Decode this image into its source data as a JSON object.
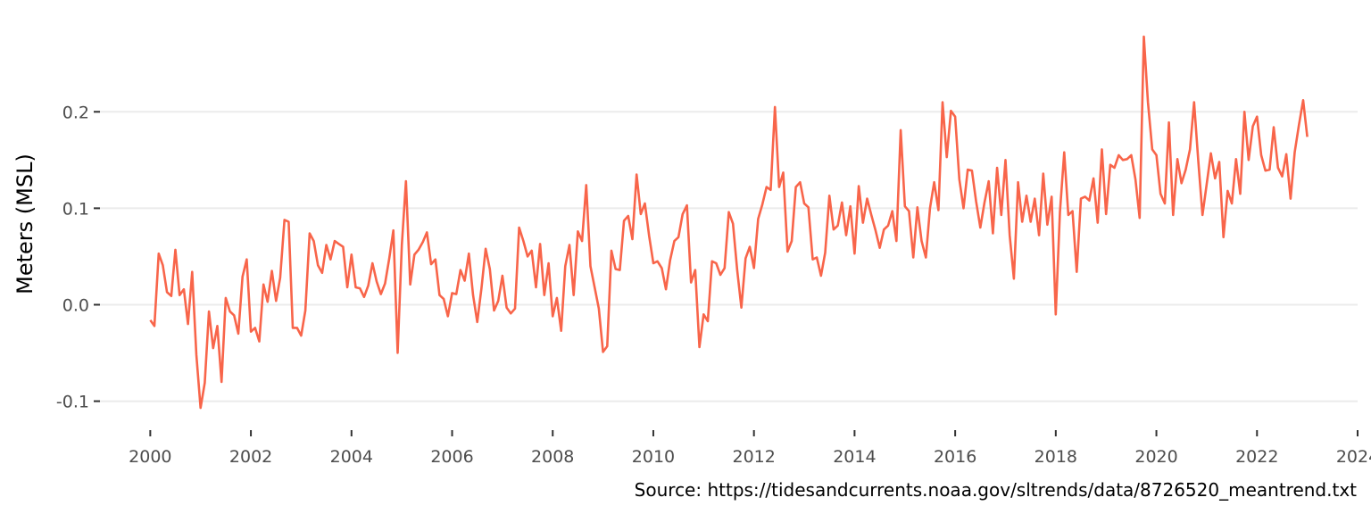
{
  "chart_data": {
    "type": "line",
    "title": "",
    "xlabel": "",
    "ylabel": "Meters (MSL)",
    "caption": "Source: https://tidesandcurrents.noaa.gov/sltrends/data/8726520_meantrend.txt",
    "xlim": [
      1999,
      2024
    ],
    "ylim": [
      -0.13,
      0.29
    ],
    "x_ticks": [
      2000,
      2002,
      2004,
      2006,
      2008,
      2010,
      2012,
      2014,
      2016,
      2018,
      2020,
      2022,
      2024
    ],
    "x_tick_labels": [
      "2000",
      "2002",
      "2004",
      "2006",
      "2008",
      "2010",
      "2012",
      "2014",
      "2016",
      "2018",
      "2020",
      "2022",
      "2024"
    ],
    "y_ticks": [
      -0.1,
      0.0,
      0.1,
      0.2
    ],
    "y_tick_labels": [
      "-0.1",
      "0.0",
      "0.1",
      "0.2"
    ],
    "grid": "horizontal major",
    "line_color": "#f8654a",
    "series": [
      {
        "x": [
          2000.0,
          2000.083,
          2000.167,
          2000.25,
          2000.333,
          2000.417,
          2000.5,
          2000.583,
          2000.667,
          2000.75,
          2000.833,
          2000.917,
          2001.0,
          2001.083,
          2001.167,
          2001.25,
          2001.333,
          2001.417,
          2001.5,
          2001.583,
          2001.667,
          2001.75,
          2001.833,
          2001.917,
          2002.0,
          2002.083,
          2002.167,
          2002.25,
          2002.333,
          2002.417,
          2002.5,
          2002.583,
          2002.667,
          2002.75,
          2002.833,
          2002.917,
          2003.0,
          2003.083,
          2003.167,
          2003.25,
          2003.333,
          2003.417,
          2003.5,
          2003.583,
          2003.667,
          2003.75,
          2003.833,
          2003.917,
          2004.0,
          2004.083,
          2004.167,
          2004.25,
          2004.333,
          2004.417,
          2004.5,
          2004.583,
          2004.667,
          2004.75,
          2004.833,
          2004.917,
          2005.0,
          2005.083,
          2005.167,
          2005.25,
          2005.333,
          2005.417,
          2005.5,
          2005.583,
          2005.667,
          2005.75,
          2005.833,
          2005.917,
          2006.0,
          2006.083,
          2006.167,
          2006.25,
          2006.333,
          2006.417,
          2006.5,
          2006.583,
          2006.667,
          2006.75,
          2006.833,
          2006.917,
          2007.0,
          2007.083,
          2007.167,
          2007.25,
          2007.333,
          2007.417,
          2007.5,
          2007.583,
          2007.667,
          2007.75,
          2007.833,
          2007.917,
          2008.0,
          2008.083,
          2008.167,
          2008.25,
          2008.333,
          2008.417,
          2008.5,
          2008.583,
          2008.667,
          2008.75,
          2008.833,
          2008.917,
          2009.0,
          2009.083,
          2009.167,
          2009.25,
          2009.333,
          2009.417,
          2009.5,
          2009.583,
          2009.667,
          2009.75,
          2009.833,
          2009.917,
          2010.0,
          2010.083,
          2010.167,
          2010.25,
          2010.333,
          2010.417,
          2010.5,
          2010.583,
          2010.667,
          2010.75,
          2010.833,
          2010.917,
          2011.0,
          2011.083,
          2011.167,
          2011.25,
          2011.333,
          2011.417,
          2011.5,
          2011.583,
          2011.667,
          2011.75,
          2011.833,
          2011.917,
          2012.0,
          2012.083,
          2012.167,
          2012.25,
          2012.333,
          2012.417,
          2012.5,
          2012.583,
          2012.667,
          2012.75,
          2012.833,
          2012.917,
          2013.0,
          2013.083,
          2013.167,
          2013.25,
          2013.333,
          2013.417,
          2013.5,
          2013.583,
          2013.667,
          2013.75,
          2013.833,
          2013.917,
          2014.0,
          2014.083,
          2014.167,
          2014.25,
          2014.333,
          2014.417,
          2014.5,
          2014.583,
          2014.667,
          2014.75,
          2014.833,
          2014.917,
          2015.0,
          2015.083,
          2015.167,
          2015.25,
          2015.333,
          2015.417,
          2015.5,
          2015.583,
          2015.667,
          2015.75,
          2015.833,
          2015.917,
          2016.0,
          2016.083,
          2016.167,
          2016.25,
          2016.333,
          2016.417,
          2016.5,
          2016.583,
          2016.667,
          2016.75,
          2016.833,
          2016.917,
          2017.0,
          2017.083,
          2017.167,
          2017.25,
          2017.333,
          2017.417,
          2017.5,
          2017.583,
          2017.667,
          2017.75,
          2017.833,
          2017.917,
          2018.0,
          2018.083,
          2018.167,
          2018.25,
          2018.333,
          2018.417,
          2018.5,
          2018.583,
          2018.667,
          2018.75,
          2018.833,
          2018.917,
          2019.0,
          2019.083,
          2019.167,
          2019.25,
          2019.333,
          2019.417,
          2019.5,
          2019.583,
          2019.667,
          2019.75,
          2019.833,
          2019.917,
          2020.0,
          2020.083,
          2020.167,
          2020.25,
          2020.333,
          2020.417,
          2020.5,
          2020.583,
          2020.667,
          2020.75,
          2020.833,
          2020.917,
          2021.0,
          2021.083,
          2021.167,
          2021.25,
          2021.333,
          2021.417,
          2021.5,
          2021.583,
          2021.667,
          2021.75,
          2021.833,
          2021.917,
          2022.0,
          2022.083,
          2022.167,
          2022.25,
          2022.333,
          2022.417,
          2022.5,
          2022.583,
          2022.667,
          2022.75,
          2022.833,
          2022.917,
          2023.0
        ],
        "values": [
          -0.016,
          -0.022,
          0.053,
          0.041,
          0.013,
          0.009,
          0.057,
          0.01,
          0.016,
          -0.02,
          0.034,
          -0.052,
          -0.107,
          -0.081,
          -0.007,
          -0.045,
          -0.022,
          -0.08,
          0.007,
          -0.007,
          -0.011,
          -0.03,
          0.029,
          0.047,
          -0.028,
          -0.024,
          -0.038,
          0.021,
          0.003,
          0.035,
          0.004,
          0.028,
          0.088,
          0.086,
          -0.024,
          -0.024,
          -0.032,
          -0.006,
          0.074,
          0.066,
          0.041,
          0.033,
          0.062,
          0.047,
          0.066,
          0.063,
          0.06,
          0.018,
          0.052,
          0.018,
          0.017,
          0.008,
          0.02,
          0.043,
          0.024,
          0.011,
          0.022,
          0.048,
          0.077,
          -0.05,
          0.062,
          0.128,
          0.021,
          0.052,
          0.057,
          0.065,
          0.075,
          0.042,
          0.047,
          0.01,
          0.006,
          -0.012,
          0.012,
          0.011,
          0.036,
          0.025,
          0.053,
          0.01,
          -0.018,
          0.017,
          0.058,
          0.037,
          -0.006,
          0.004,
          0.03,
          -0.003,
          -0.009,
          -0.004,
          0.08,
          0.066,
          0.05,
          0.056,
          0.018,
          0.063,
          0.01,
          0.043,
          -0.012,
          0.007,
          -0.027,
          0.04,
          0.062,
          0.01,
          0.076,
          0.066,
          0.124,
          0.04,
          0.018,
          -0.004,
          -0.049,
          -0.043,
          0.056,
          0.037,
          0.036,
          0.087,
          0.092,
          0.068,
          0.135,
          0.094,
          0.105,
          0.071,
          0.043,
          0.045,
          0.038,
          0.016,
          0.046,
          0.066,
          0.07,
          0.094,
          0.103,
          0.023,
          0.036,
          -0.044,
          -0.01,
          -0.017,
          0.045,
          0.043,
          0.031,
          0.038,
          0.096,
          0.084,
          0.036,
          -0.003,
          0.048,
          0.06,
          0.038,
          0.089,
          0.104,
          0.122,
          0.119,
          0.205,
          0.122,
          0.137,
          0.055,
          0.066,
          0.122,
          0.127,
          0.105,
          0.101,
          0.047,
          0.049,
          0.03,
          0.054,
          0.113,
          0.078,
          0.082,
          0.106,
          0.072,
          0.102,
          0.053,
          0.123,
          0.085,
          0.11,
          0.093,
          0.077,
          0.059,
          0.078,
          0.082,
          0.097,
          0.066,
          0.181,
          0.102,
          0.097,
          0.049,
          0.101,
          0.066,
          0.049,
          0.1,
          0.127,
          0.098,
          0.21,
          0.153,
          0.201,
          0.195,
          0.13,
          0.1,
          0.14,
          0.139,
          0.107,
          0.08,
          0.106,
          0.128,
          0.074,
          0.142,
          0.093,
          0.15,
          0.072,
          0.027,
          0.127,
          0.086,
          0.113,
          0.086,
          0.11,
          0.072,
          0.136,
          0.083,
          0.112,
          -0.01,
          0.096,
          0.158,
          0.093,
          0.097,
          0.034,
          0.11,
          0.112,
          0.108,
          0.131,
          0.085,
          0.161,
          0.094,
          0.145,
          0.142,
          0.155,
          0.15,
          0.151,
          0.155,
          0.13,
          0.09,
          0.278,
          0.21,
          0.161,
          0.155,
          0.115,
          0.105,
          0.189,
          0.093,
          0.151,
          0.126,
          0.14,
          0.161,
          0.21,
          0.149,
          0.093,
          0.125,
          0.157,
          0.131,
          0.148,
          0.07,
          0.118,
          0.105,
          0.151,
          0.115,
          0.2,
          0.15,
          0.185,
          0.195,
          0.155,
          0.139,
          0.14,
          0.184,
          0.142,
          0.133,
          0.156,
          0.11,
          0.158,
          0.186,
          0.212,
          0.174
        ]
      }
    ]
  }
}
